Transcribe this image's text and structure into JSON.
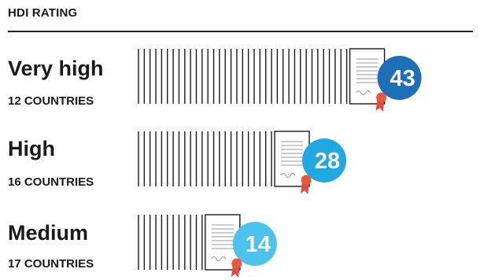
{
  "header": {
    "title": "HDI RATING"
  },
  "chart_data": {
    "type": "bar",
    "title": "HDI RATING",
    "orientation": "horizontal",
    "categories": [
      "Very high",
      "High",
      "Medium"
    ],
    "sublabels": [
      "12 COUNTRIES",
      "16 COUNTRIES",
      "17 COUNTRIES"
    ],
    "values": [
      43,
      28,
      14
    ],
    "colors": [
      "#1f6fb8",
      "#22a8e0",
      "#4cc3ec"
    ]
  }
}
